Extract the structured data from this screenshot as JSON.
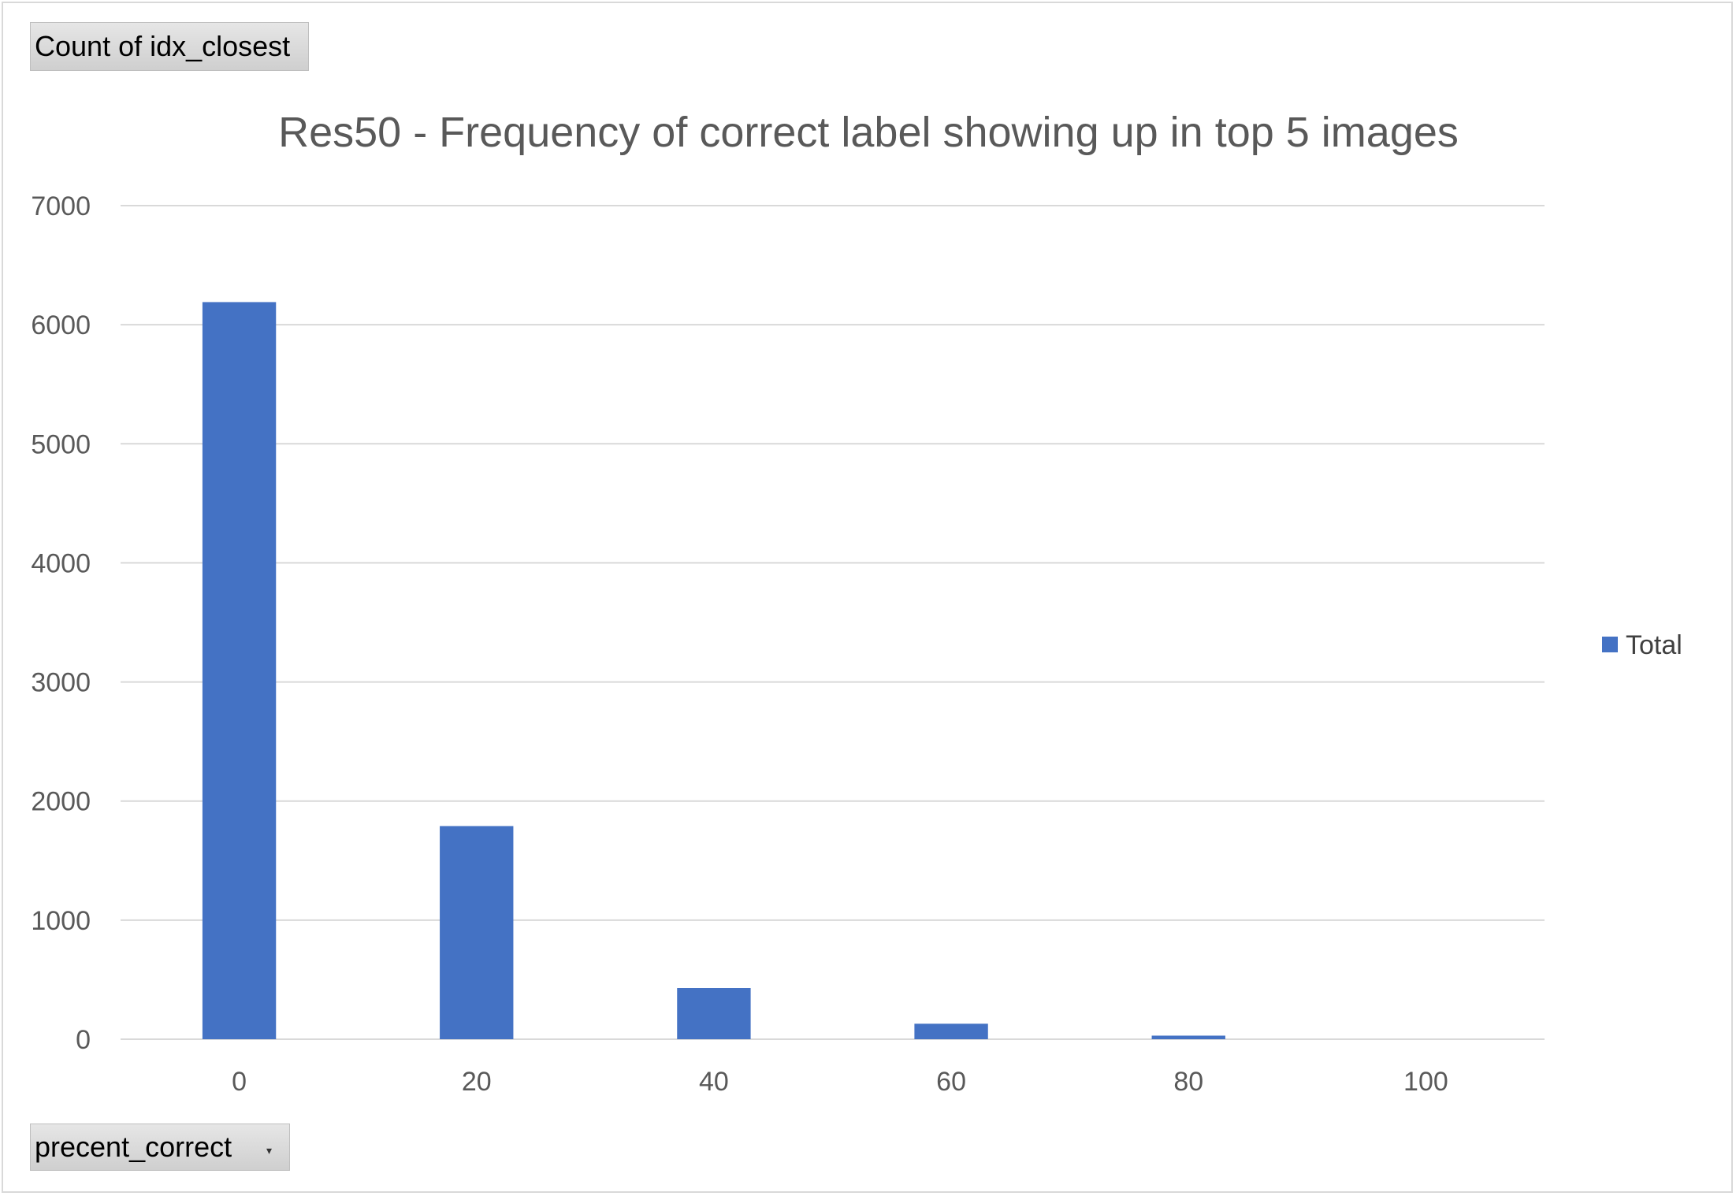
{
  "pivot": {
    "value_field": "Count of idx_closest",
    "axis_field": "precent_correct"
  },
  "colors": {
    "bar": "#4472c4",
    "grid": "#d9d9d9",
    "text": "#595959"
  },
  "chart_data": {
    "type": "bar",
    "title": "Res50 - Frequency of correct label showing up in top 5 images",
    "xlabel": "",
    "ylabel": "",
    "categories": [
      "0",
      "20",
      "40",
      "60",
      "80",
      "100"
    ],
    "series": [
      {
        "name": "Total",
        "values": [
          6190,
          1790,
          430,
          130,
          30,
          0
        ]
      }
    ],
    "ylim": [
      0,
      7000
    ],
    "yticks": [
      0,
      1000,
      2000,
      3000,
      4000,
      5000,
      6000,
      7000
    ],
    "grid": true,
    "legend_position": "right"
  }
}
